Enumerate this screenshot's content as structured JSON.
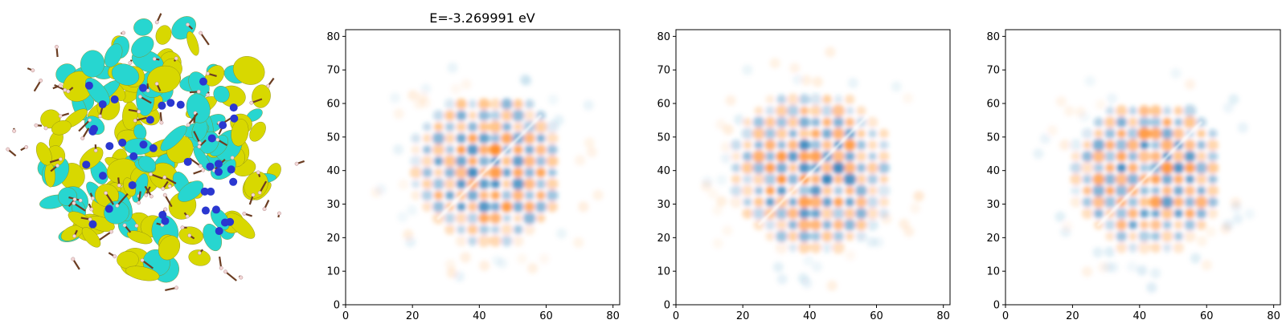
{
  "figure_title": "E=-3.269991 eV",
  "colors": {
    "positive": "#ff7f0e",
    "negative": "#1f77b4",
    "isosurface_positive": "#d8d800",
    "isosurface_negative": "#27d6d0",
    "atom_nitrogen": "#2a37d0",
    "atom_carbon": "#6b3d22",
    "atom_hydrogen": "#f3d6d6"
  },
  "chart_data": [
    {
      "type": "image",
      "description": "molecular orbital isosurface rendering",
      "ticks": false
    },
    {
      "type": "heatmap",
      "title": "E=-3.269991 eV",
      "xlim": [
        0,
        82
      ],
      "ylim": [
        0,
        82
      ],
      "xticks": [
        0,
        20,
        40,
        60,
        80
      ],
      "yticks": [
        0,
        10,
        20,
        30,
        40,
        50,
        60,
        70,
        80
      ],
      "colormap": "diverging blue-white-orange",
      "projection": "xy",
      "grid": false
    },
    {
      "type": "heatmap",
      "title": "",
      "xlim": [
        0,
        82
      ],
      "ylim": [
        0,
        82
      ],
      "xticks": [
        0,
        20,
        40,
        60,
        80
      ],
      "yticks": [
        0,
        10,
        20,
        30,
        40,
        50,
        60,
        70,
        80
      ],
      "colormap": "diverging blue-white-orange",
      "projection": "xz",
      "grid": false
    },
    {
      "type": "heatmap",
      "title": "",
      "xlim": [
        0,
        82
      ],
      "ylim": [
        0,
        82
      ],
      "xticks": [
        0,
        20,
        40,
        60,
        80
      ],
      "yticks": [
        0,
        10,
        20,
        30,
        40,
        50,
        60,
        70,
        80
      ],
      "colormap": "diverging blue-white-orange",
      "projection": "yz",
      "grid": false
    }
  ]
}
